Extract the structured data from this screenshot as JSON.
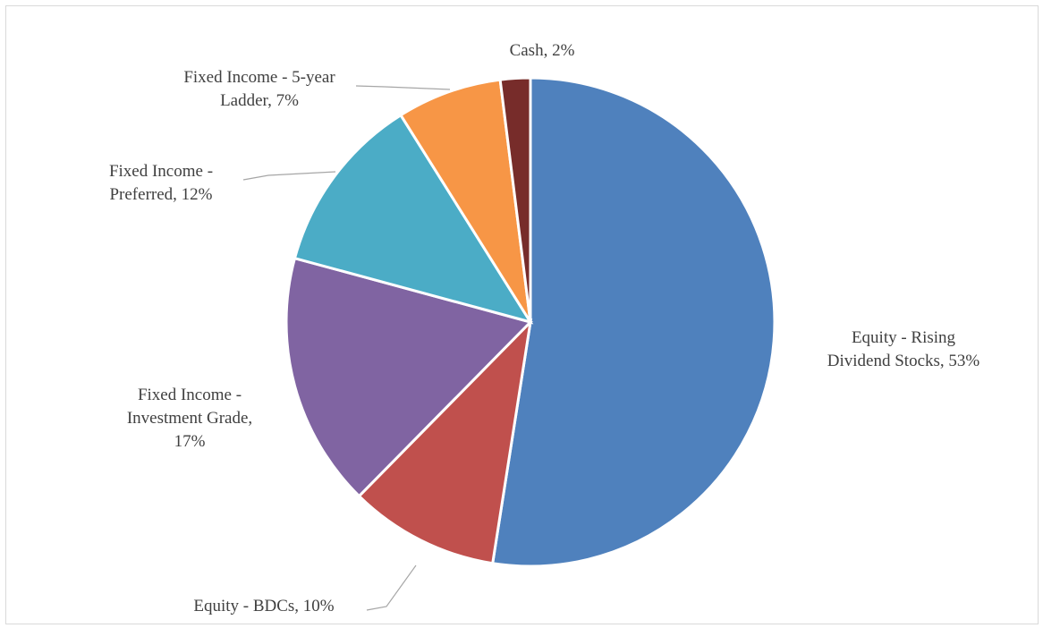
{
  "chart_data": {
    "type": "pie",
    "title": "",
    "start": "12 o'clock, clockwise",
    "slices": [
      {
        "label": "Equity - Rising Dividend Stocks, 53%",
        "label_lines": [
          "Equity - Rising",
          "Dividend Stocks, 53%"
        ],
        "name": "Equity - Rising Dividend Stocks",
        "value": 53,
        "color": "#4f81bd"
      },
      {
        "label": "Equity - BDCs, 10%",
        "label_lines": [
          "Equity - BDCs, 10%"
        ],
        "name": "Equity - BDCs",
        "value": 10,
        "color": "#c0504d"
      },
      {
        "label": "Fixed Income - Investment Grade, 17%",
        "label_lines": [
          "Fixed Income -",
          "Investment Grade,",
          "17%"
        ],
        "name": "Fixed Income - Investment Grade",
        "value": 17,
        "color": "#8064a2"
      },
      {
        "label": "Fixed Income - Preferred, 12%",
        "label_lines": [
          "Fixed Income -",
          "Preferred, 12%"
        ],
        "name": "Fixed Income - Preferred",
        "value": 12,
        "color": "#4bacc6"
      },
      {
        "label": "Fixed Income - 5-year Ladder, 7%",
        "label_lines": [
          "Fixed Income - 5-year",
          "Ladder, 7%"
        ],
        "name": "Fixed Income - 5-year Ladder",
        "value": 7,
        "color": "#f79646"
      },
      {
        "label": "Cash, 2%",
        "label_lines": [
          "Cash, 2%"
        ],
        "name": "Cash",
        "value": 2,
        "color": "#772c2a"
      }
    ]
  }
}
